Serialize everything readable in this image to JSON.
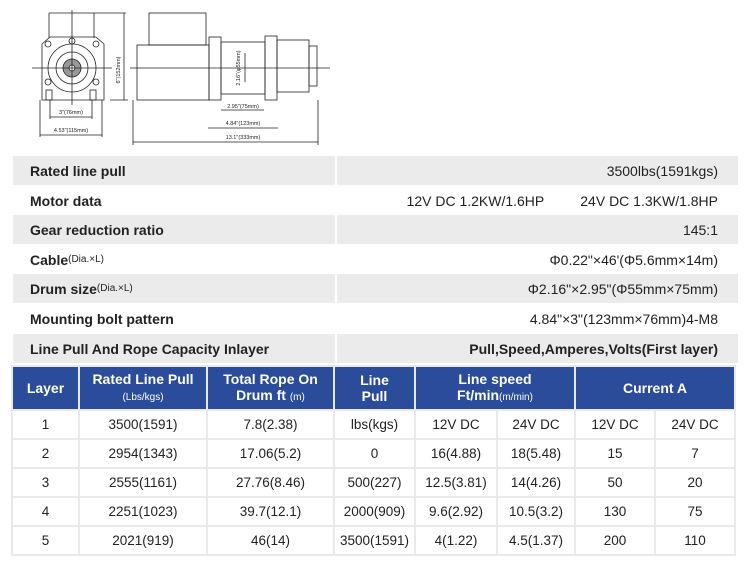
{
  "drawing": {
    "dims": [
      "6\"(152mm)",
      "3\"(76mm)",
      "4.53\"(115mm)",
      "2.16\"(φ55mm)",
      "2.95\"(75mm)",
      "4.84\"(123mm)",
      "13.1\"(333mm)"
    ]
  },
  "specs": [
    {
      "label": "Rated line pull",
      "values": [
        "3500lbs(1591kgs)"
      ]
    },
    {
      "label": "Motor data",
      "values": [
        "12V DC 1.2KW/1.6HP",
        "24V DC 1.3KW/1.8HP"
      ]
    },
    {
      "label": "Gear reduction ratio",
      "values": [
        "145:1"
      ]
    },
    {
      "label": "Cable",
      "sub": "(Dia.×L)",
      "values": [
        "Φ0.22\"×46'(Φ5.6mm×14m)"
      ]
    },
    {
      "label": "Drum size",
      "sub": "(Dia.×L)",
      "values": [
        "Φ2.16\"×2.95\"(Φ55mm×75mm)"
      ]
    },
    {
      "label": "Mounting bolt pattern",
      "values": [
        "4.84\"×3\"(123mm×76mm)4-M8"
      ]
    },
    {
      "label": "Line Pull And Rope Capacity Inlayer",
      "values": [
        "Pull,Speed,Amperes,Volts(First layer)"
      ]
    }
  ],
  "table": {
    "headers": {
      "layer": "Layer",
      "rated": "Rated Line Pull",
      "rated_unit": "(Lbs/kgs)",
      "rope": "Total Rope On",
      "rope2": "Drum ft",
      "rope_unit": "(m)",
      "linepull": "Line",
      "linepull2": "Pull",
      "speed": "Line speed",
      "speed2": "Ft/min",
      "speed_unit": "(m/min)",
      "current": "Current A"
    },
    "rows": [
      [
        "1",
        "3500(1591)",
        "7.8(2.38)",
        "lbs(kgs)",
        "12V DC",
        "24V DC",
        "12V DC",
        "24V DC"
      ],
      [
        "2",
        "2954(1343)",
        "17.06(5.2)",
        "0",
        "16(4.88)",
        "18(5.48)",
        "15",
        "7"
      ],
      [
        "3",
        "2555(1161)",
        "27.76(8.46)",
        "500(227)",
        "12.5(3.81)",
        "14(4.26)",
        "50",
        "20"
      ],
      [
        "4",
        "2251(1023)",
        "39.7(12.1)",
        "2000(909)",
        "9.6(2.92)",
        "10.5(3.2)",
        "130",
        "75"
      ],
      [
        "5",
        "2021(919)",
        "46(14)",
        "3500(1591)",
        "4(1.22)",
        "4.5(1.37)",
        "200",
        "110"
      ]
    ]
  },
  "colors": {
    "header_bg": "#2b4b9b",
    "row_gray": "#ebebeb"
  }
}
